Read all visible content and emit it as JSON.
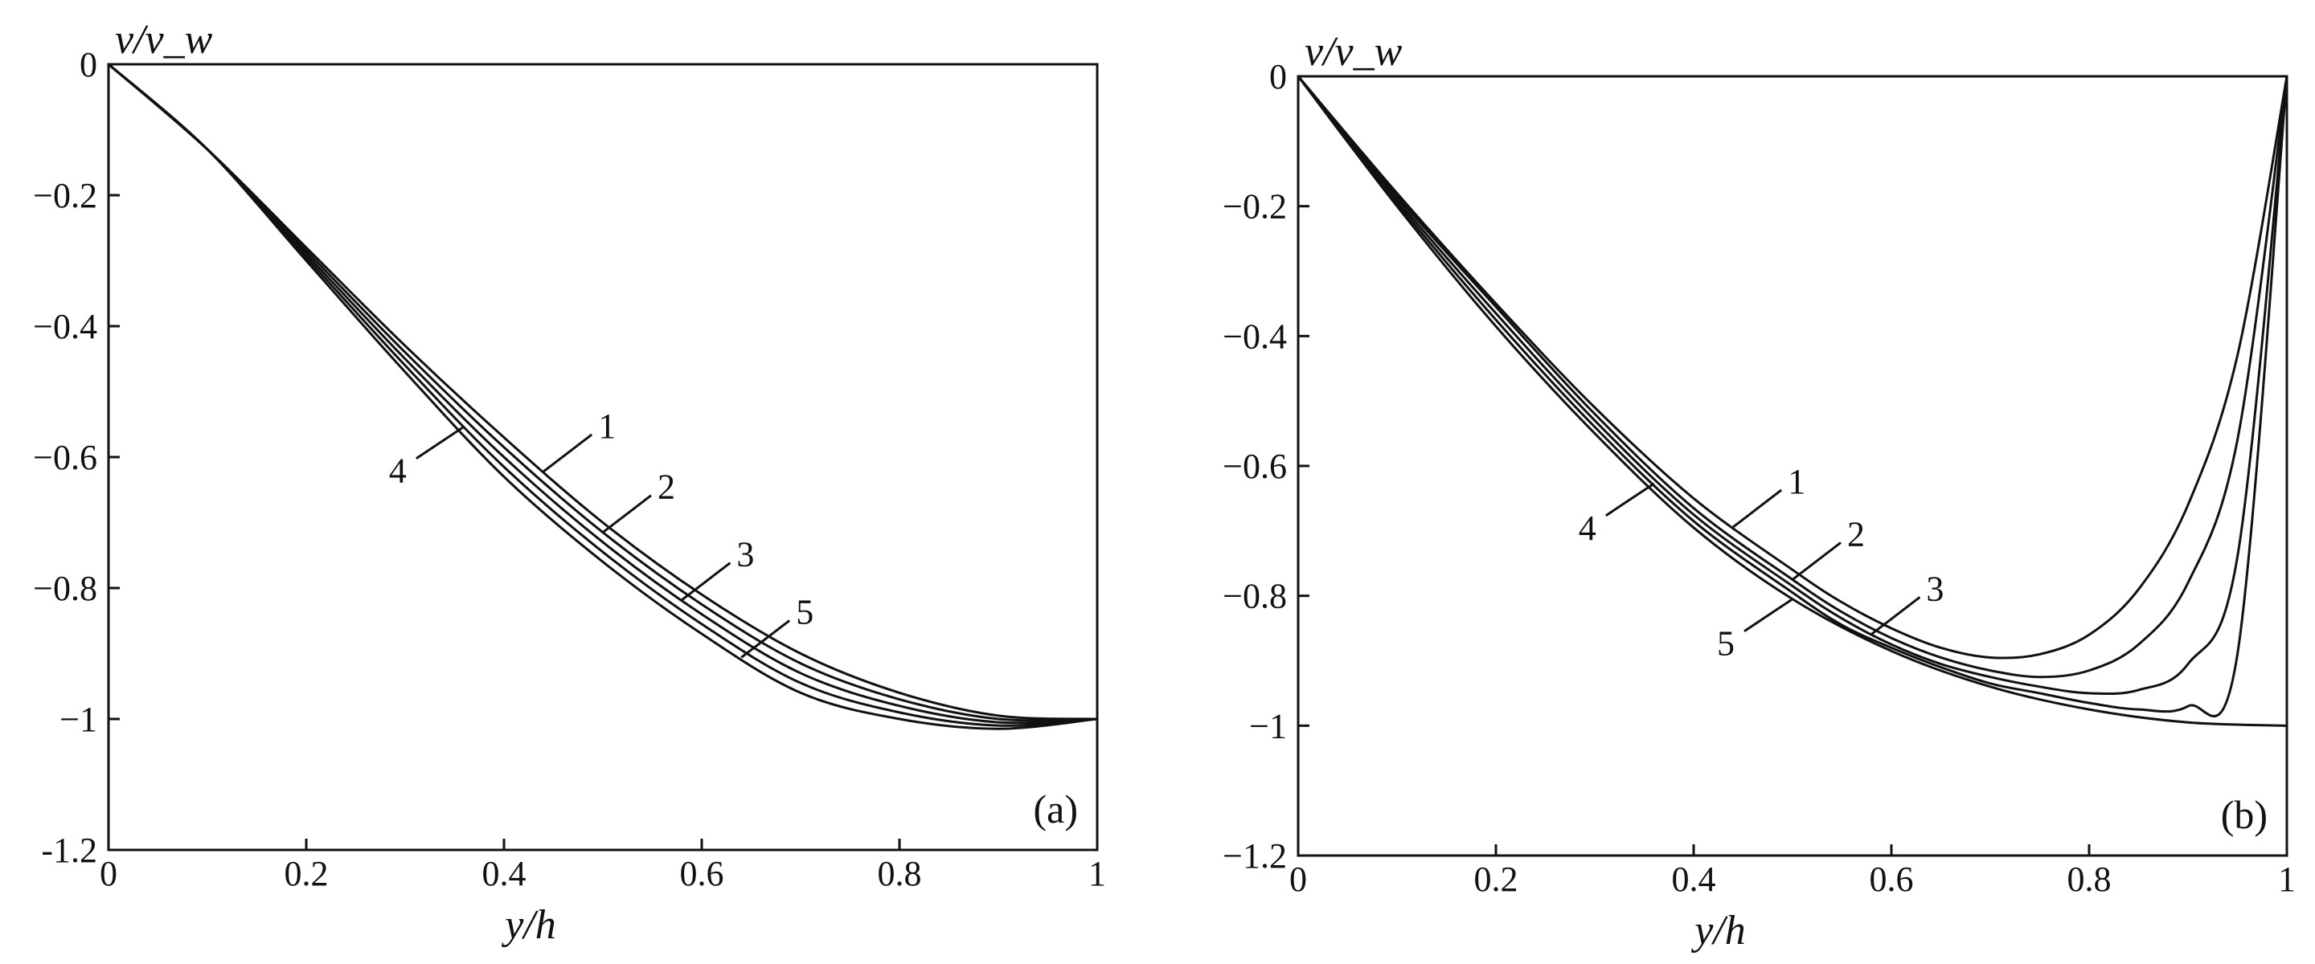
{
  "chart_data": [
    {
      "type": "line",
      "panel_label": "(a)",
      "xlabel": "y/h",
      "ylabel": "v/v_w",
      "xlim": [
        0,
        1
      ],
      "ylim": [
        -1.2,
        0
      ],
      "x_ticks": [
        0,
        0.2,
        0.4,
        0.6,
        0.8,
        1
      ],
      "x_tick_labels": [
        "0",
        "0.2",
        "0.4",
        "0.6",
        "0.8",
        "1"
      ],
      "y_ticks": [
        0,
        -0.2,
        -0.4,
        -0.6,
        -0.8,
        -1,
        -1.2
      ],
      "y_tick_labels": [
        "0",
        "−0.2",
        "−0.4",
        "−0.6",
        "−0.8",
        "−1",
        "-1.2"
      ],
      "grid": false,
      "series": [
        {
          "name": "1",
          "x": [
            0,
            0.1,
            0.2,
            0.3,
            0.4,
            0.5,
            0.6,
            0.7,
            0.8,
            0.9,
            1.0
          ],
          "y": [
            0,
            -0.13,
            -0.28,
            -0.43,
            -0.57,
            -0.7,
            -0.81,
            -0.9,
            -0.96,
            -0.995,
            -1.0
          ]
        },
        {
          "name": "2",
          "x": [
            0,
            0.1,
            0.2,
            0.3,
            0.4,
            0.5,
            0.6,
            0.7,
            0.8,
            0.9,
            1.0
          ],
          "y": [
            0,
            -0.13,
            -0.285,
            -0.44,
            -0.585,
            -0.715,
            -0.825,
            -0.915,
            -0.97,
            -1.0,
            -1.0
          ]
        },
        {
          "name": "3",
          "x": [
            0,
            0.1,
            0.2,
            0.3,
            0.4,
            0.5,
            0.6,
            0.7,
            0.8,
            0.9,
            1.0
          ],
          "y": [
            0,
            -0.13,
            -0.29,
            -0.45,
            -0.6,
            -0.73,
            -0.84,
            -0.93,
            -0.98,
            -1.005,
            -1.0
          ]
        },
        {
          "name": "4",
          "x": [
            0,
            0.1,
            0.2,
            0.3,
            0.4,
            0.5,
            0.6,
            0.7,
            0.8,
            0.9,
            1.0
          ],
          "y": [
            0,
            -0.13,
            -0.295,
            -0.46,
            -0.615,
            -0.745,
            -0.855,
            -0.945,
            -0.99,
            -1.01,
            -1.0
          ]
        },
        {
          "name": "5",
          "x": [
            0,
            0.1,
            0.2,
            0.3,
            0.4,
            0.5,
            0.6,
            0.7,
            0.8,
            0.9,
            1.0
          ],
          "y": [
            0,
            -0.13,
            -0.3,
            -0.47,
            -0.63,
            -0.76,
            -0.87,
            -0.96,
            -1.0,
            -1.015,
            -1.0
          ]
        }
      ],
      "annotations": [
        {
          "text": "1",
          "series": "1",
          "at_x": 0.44
        },
        {
          "text": "2",
          "series": "2",
          "at_x": 0.5
        },
        {
          "text": "3",
          "series": "3",
          "at_x": 0.58
        },
        {
          "text": "4",
          "series": "4",
          "at_x": 0.36,
          "side": "left"
        },
        {
          "text": "5",
          "series": "5",
          "at_x": 0.64
        }
      ]
    },
    {
      "type": "line",
      "panel_label": "(b)",
      "xlabel": "y/h",
      "ylabel": "v/v_w",
      "xlim": [
        0,
        1
      ],
      "ylim": [
        -1.2,
        0
      ],
      "x_ticks": [
        0,
        0.2,
        0.4,
        0.6,
        0.8,
        1
      ],
      "x_tick_labels": [
        "0",
        "0.2",
        "0.4",
        "0.6",
        "0.8",
        "1"
      ],
      "y_ticks": [
        0,
        -0.2,
        -0.4,
        -0.6,
        -0.8,
        -1,
        -1.2
      ],
      "y_tick_labels": [
        "0",
        "−0.2",
        "−0.4",
        "−0.6",
        "−0.8",
        "−1",
        "−1.2"
      ],
      "grid": false,
      "series": [
        {
          "name": "1",
          "x": [
            0,
            0.1,
            0.2,
            0.3,
            0.4,
            0.5,
            0.55,
            0.6,
            0.65,
            0.7,
            0.75,
            0.8,
            0.85,
            0.9,
            0.95,
            1.0
          ],
          "y": [
            0,
            -0.18,
            -0.35,
            -0.51,
            -0.65,
            -0.76,
            -0.81,
            -0.85,
            -0.88,
            -0.895,
            -0.89,
            -0.86,
            -0.79,
            -0.66,
            -0.43,
            0
          ]
        },
        {
          "name": "2",
          "x": [
            0,
            0.1,
            0.2,
            0.3,
            0.4,
            0.5,
            0.55,
            0.6,
            0.65,
            0.7,
            0.75,
            0.8,
            0.85,
            0.9,
            0.95,
            1.0
          ],
          "y": [
            0,
            -0.185,
            -0.355,
            -0.52,
            -0.665,
            -0.775,
            -0.825,
            -0.865,
            -0.895,
            -0.915,
            -0.925,
            -0.915,
            -0.875,
            -0.78,
            -0.56,
            0
          ]
        },
        {
          "name": "3",
          "x": [
            0,
            0.1,
            0.2,
            0.3,
            0.4,
            0.5,
            0.55,
            0.6,
            0.65,
            0.7,
            0.75,
            0.8,
            0.85,
            0.9,
            0.95,
            1.0
          ],
          "y": [
            0,
            -0.19,
            -0.365,
            -0.53,
            -0.675,
            -0.785,
            -0.835,
            -0.875,
            -0.905,
            -0.925,
            -0.94,
            -0.95,
            -0.945,
            -0.905,
            -0.74,
            0
          ]
        },
        {
          "name": "4",
          "x": [
            0,
            0.1,
            0.2,
            0.3,
            0.4,
            0.5,
            0.55,
            0.6,
            0.65,
            0.7,
            0.75,
            0.8,
            0.85,
            0.9,
            0.95,
            1.0
          ],
          "y": [
            0,
            -0.195,
            -0.375,
            -0.54,
            -0.685,
            -0.795,
            -0.845,
            -0.88,
            -0.91,
            -0.935,
            -0.95,
            -0.965,
            -0.975,
            -0.97,
            -0.89,
            0
          ]
        },
        {
          "name": "5",
          "x": [
            0,
            0.1,
            0.2,
            0.3,
            0.4,
            0.5,
            0.6,
            0.7,
            0.8,
            0.9,
            1.0
          ],
          "y": [
            0,
            -0.2,
            -0.385,
            -0.55,
            -0.695,
            -0.805,
            -0.885,
            -0.94,
            -0.975,
            -0.995,
            -1.0
          ]
        }
      ],
      "annotations": [
        {
          "text": "1",
          "series": "1",
          "at_x": 0.44
        },
        {
          "text": "2",
          "series": "2",
          "at_x": 0.5
        },
        {
          "text": "3",
          "series": "3",
          "at_x": 0.58
        },
        {
          "text": "4",
          "series": "4",
          "at_x": 0.36,
          "side": "left"
        },
        {
          "text": "5",
          "series": "5",
          "at_x": 0.5,
          "side": "left"
        }
      ]
    }
  ]
}
